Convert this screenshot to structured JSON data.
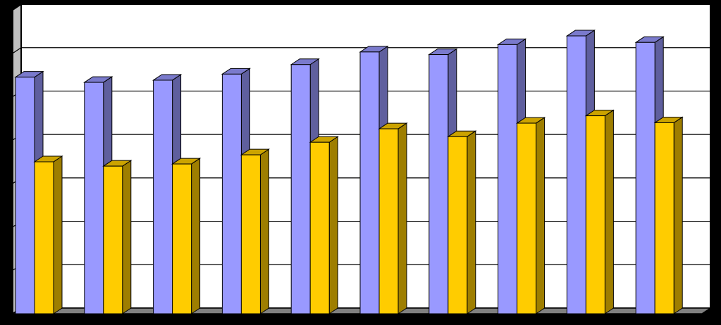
{
  "chart_data": {
    "type": "bar",
    "style": "3d-clustered-column",
    "title": "",
    "xlabel": "",
    "ylabel": "",
    "categories": [
      "",
      "",
      "",
      "",
      "",
      "",
      "",
      "",
      "",
      ""
    ],
    "series": [
      {
        "values": [
          5.45,
          5.33,
          5.38,
          5.52,
          5.74,
          6.03,
          5.97,
          6.2,
          6.4,
          6.25
        ],
        "color": "#9999FF"
      },
      {
        "values": [
          3.5,
          3.4,
          3.45,
          3.66,
          3.95,
          4.26,
          4.08,
          4.39,
          4.56,
          4.4
        ],
        "color": "#FFCC00"
      }
    ],
    "ylim": [
      0,
      7
    ],
    "grid": true,
    "legend": "none",
    "colors": {
      "background": "#000000",
      "plot_area": "#FFFFFF",
      "floor": "#808080",
      "gridline": "#000000"
    }
  }
}
